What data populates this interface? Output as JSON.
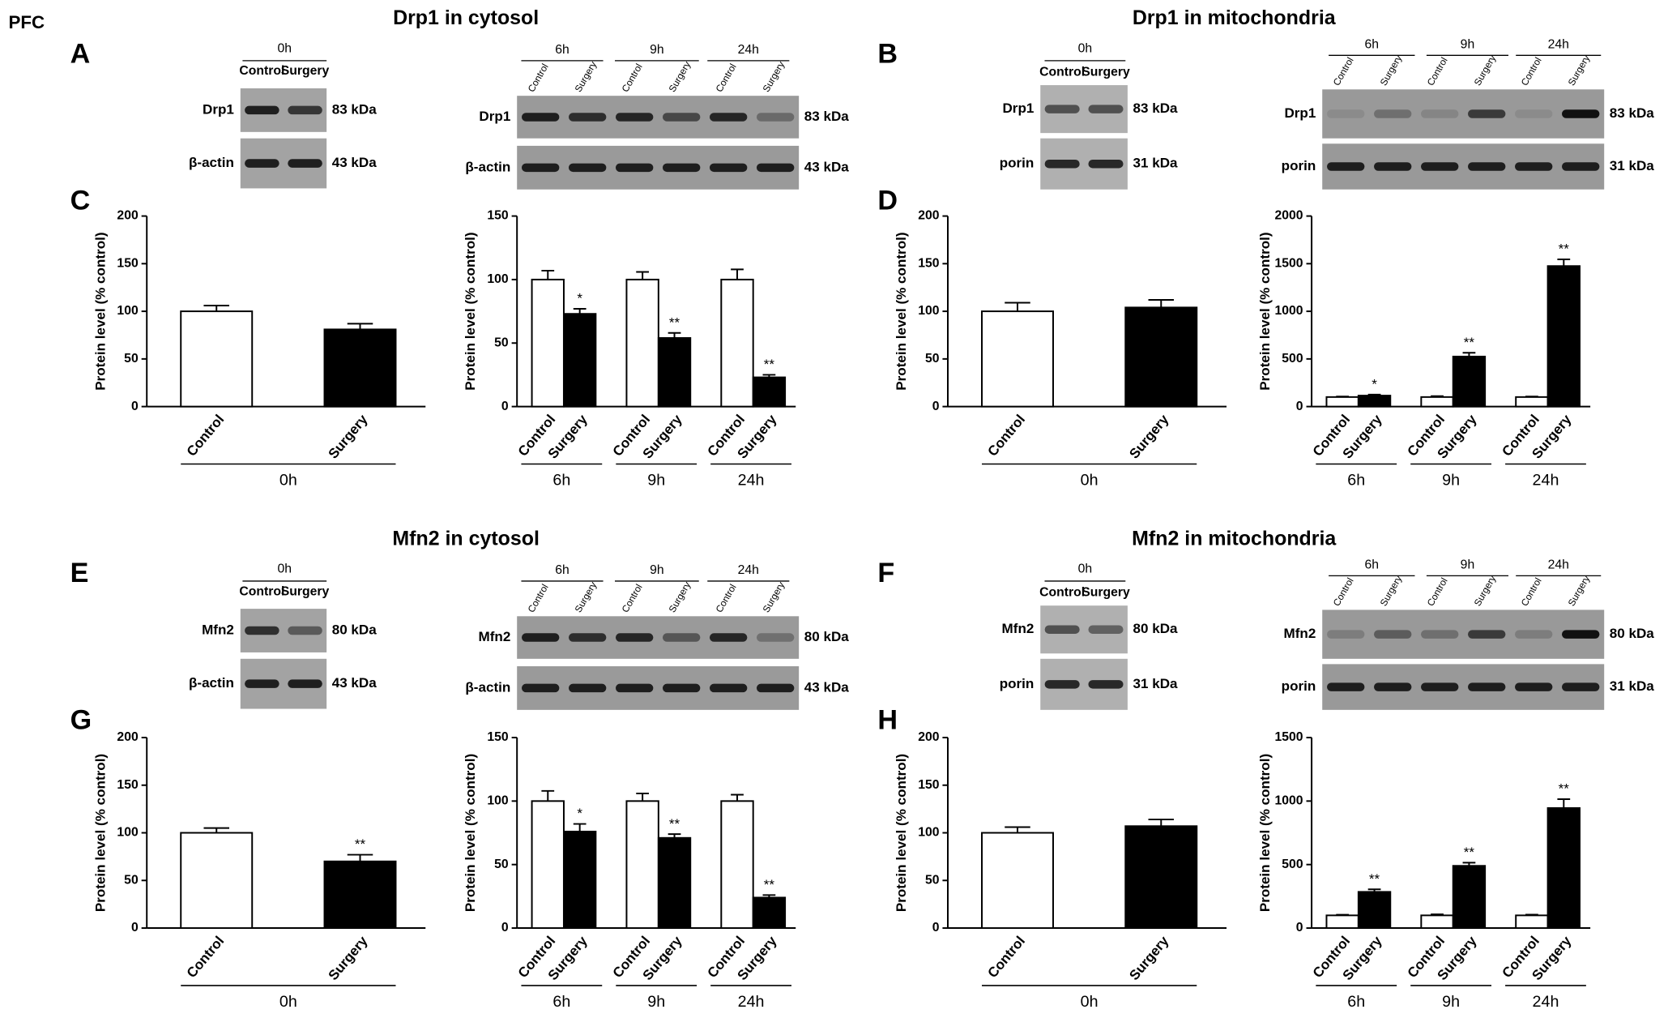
{
  "label": "PFC",
  "panel_labels": [
    "A",
    "B",
    "C",
    "D",
    "E",
    "F",
    "G",
    "H"
  ],
  "titles": [
    "Drp1 in cytosol",
    "Drp1 in mitochondria",
    "Mfn2 in cytosol",
    "Mfn2 in mitochondria"
  ],
  "blots": [
    {
      "groups": [
        "0h"
      ],
      "lanes": [
        "Control",
        "Surgery"
      ],
      "rows": [
        {
          "protein": "Drp1",
          "size": "83 kDa"
        },
        {
          "protein": "β-actin",
          "size": "43 kDa"
        }
      ]
    },
    {
      "groups": [
        "6h",
        "9h",
        "24h"
      ],
      "lanes": [
        "Control",
        "Surgery"
      ],
      "rows": [
        {
          "protein": "Drp1",
          "size": "83 kDa"
        },
        {
          "protein": "β-actin",
          "size": "43 kDa"
        }
      ]
    },
    {
      "groups": [
        "0h"
      ],
      "lanes": [
        "Control",
        "Surgery"
      ],
      "rows": [
        {
          "protein": "Drp1",
          "size": "83 kDa"
        },
        {
          "protein": "porin",
          "size": "31 kDa"
        }
      ]
    },
    {
      "groups": [
        "6h",
        "9h",
        "24h"
      ],
      "lanes": [
        "Control",
        "Surgery"
      ],
      "rows": [
        {
          "protein": "Drp1",
          "size": "83 kDa"
        },
        {
          "protein": "porin",
          "size": "31 kDa"
        }
      ]
    },
    {
      "groups": [
        "0h"
      ],
      "lanes": [
        "Control",
        "Surgery"
      ],
      "rows": [
        {
          "protein": "Mfn2",
          "size": "80 kDa"
        },
        {
          "protein": "β-actin",
          "size": "43 kDa"
        }
      ]
    },
    {
      "groups": [
        "6h",
        "9h",
        "24h"
      ],
      "lanes": [
        "Control",
        "Surgery"
      ],
      "rows": [
        {
          "protein": "Mfn2",
          "size": "80 kDa"
        },
        {
          "protein": "β-actin",
          "size": "43 kDa"
        }
      ]
    },
    {
      "groups": [
        "0h"
      ],
      "lanes": [
        "Control",
        "Surgery"
      ],
      "rows": [
        {
          "protein": "Mfn2",
          "size": "80 kDa"
        },
        {
          "protein": "porin",
          "size": "31 kDa"
        }
      ]
    },
    {
      "groups": [
        "6h",
        "9h",
        "24h"
      ],
      "lanes": [
        "Control",
        "Surgery"
      ],
      "rows": [
        {
          "protein": "Mfn2",
          "size": "80 kDa"
        },
        {
          "protein": "porin",
          "size": "31 kDa"
        }
      ]
    }
  ],
  "chart_data": [
    {
      "type": "bar",
      "ylabel": "Protein level (% control)",
      "groups": [
        "0h"
      ],
      "ylim": [
        0,
        200
      ],
      "yticks": [
        0,
        50,
        100,
        150,
        200
      ],
      "series": [
        {
          "name": "Control",
          "color": "#ffffff",
          "values": [
            100
          ],
          "errors": [
            6
          ]
        },
        {
          "name": "Surgery",
          "color": "#000000",
          "values": [
            81
          ],
          "errors": [
            6
          ]
        }
      ]
    },
    {
      "type": "bar",
      "ylabel": "Protein level (% control)",
      "groups": [
        "6h",
        "9h",
        "24h"
      ],
      "ylim": [
        0,
        150
      ],
      "yticks": [
        0,
        50,
        100,
        150
      ],
      "series": [
        {
          "name": "Control",
          "color": "#ffffff",
          "values": [
            100,
            100,
            100
          ],
          "errors": [
            7,
            6,
            8
          ]
        },
        {
          "name": "Surgery",
          "color": "#000000",
          "values": [
            73,
            54,
            23
          ],
          "errors": [
            4,
            4,
            2
          ],
          "annotations": [
            "*",
            "**",
            "**"
          ]
        }
      ]
    },
    {
      "type": "bar",
      "ylabel": "Protein level (% control)",
      "groups": [
        "0h"
      ],
      "ylim": [
        0,
        200
      ],
      "yticks": [
        0,
        50,
        100,
        150,
        200
      ],
      "series": [
        {
          "name": "Control",
          "color": "#ffffff",
          "values": [
            100
          ],
          "errors": [
            9
          ]
        },
        {
          "name": "Surgery",
          "color": "#000000",
          "values": [
            104
          ],
          "errors": [
            8
          ]
        }
      ]
    },
    {
      "type": "bar",
      "ylabel": "Protein level (% control)",
      "groups": [
        "6h",
        "9h",
        "24h"
      ],
      "ylim": [
        0,
        2000
      ],
      "yticks": [
        0,
        500,
        1000,
        1500,
        2000
      ],
      "series": [
        {
          "name": "Control",
          "color": "#ffffff",
          "values": [
            100,
            100,
            100
          ],
          "errors": [
            5,
            10,
            5
          ]
        },
        {
          "name": "Surgery",
          "color": "#000000",
          "values": [
            115,
            525,
            1475
          ],
          "errors": [
            10,
            40,
            70
          ],
          "annotations": [
            "*",
            "**",
            "**"
          ]
        }
      ]
    },
    {
      "type": "bar",
      "ylabel": "Protein level (% control)",
      "groups": [
        "0h"
      ],
      "ylim": [
        0,
        200
      ],
      "yticks": [
        0,
        50,
        100,
        150,
        200
      ],
      "series": [
        {
          "name": "Control",
          "color": "#ffffff",
          "values": [
            100
          ],
          "errors": [
            5
          ]
        },
        {
          "name": "Surgery",
          "color": "#000000",
          "values": [
            70
          ],
          "errors": [
            7
          ],
          "annotations": [
            "**"
          ]
        }
      ]
    },
    {
      "type": "bar",
      "ylabel": "Protein level (% control)",
      "groups": [
        "6h",
        "9h",
        "24h"
      ],
      "ylim": [
        0,
        150
      ],
      "yticks": [
        0,
        50,
        100,
        150
      ],
      "series": [
        {
          "name": "Control",
          "color": "#ffffff",
          "values": [
            100,
            100,
            100
          ],
          "errors": [
            8,
            6,
            5
          ]
        },
        {
          "name": "Surgery",
          "color": "#000000",
          "values": [
            76,
            71,
            24
          ],
          "errors": [
            6,
            3,
            2
          ],
          "annotations": [
            "*",
            "**",
            "**"
          ]
        }
      ]
    },
    {
      "type": "bar",
      "ylabel": "Protein level (% control)",
      "groups": [
        "0h"
      ],
      "ylim": [
        0,
        200
      ],
      "yticks": [
        0,
        50,
        100,
        150,
        200
      ],
      "series": [
        {
          "name": "Control",
          "color": "#ffffff",
          "values": [
            100
          ],
          "errors": [
            6
          ]
        },
        {
          "name": "Surgery",
          "color": "#000000",
          "values": [
            107
          ],
          "errors": [
            7
          ]
        }
      ]
    },
    {
      "type": "bar",
      "ylabel": "Protein level (% control)",
      "groups": [
        "6h",
        "9h",
        "24h"
      ],
      "ylim": [
        0,
        1500
      ],
      "yticks": [
        0,
        500,
        1000,
        1500
      ],
      "series": [
        {
          "name": "Control",
          "color": "#ffffff",
          "values": [
            100,
            100,
            100
          ],
          "errors": [
            5,
            8,
            6
          ]
        },
        {
          "name": "Surgery",
          "color": "#000000",
          "values": [
            285,
            490,
            945
          ],
          "errors": [
            20,
            25,
            70
          ],
          "annotations": [
            "**",
            "**",
            "**"
          ]
        }
      ]
    }
  ]
}
